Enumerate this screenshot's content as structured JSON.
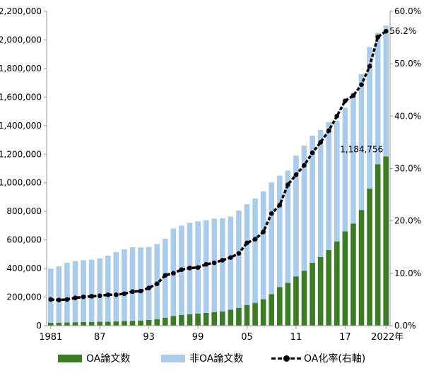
{
  "chart_data": {
    "type": "bar",
    "stacked": true,
    "categories": [
      "1981",
      "1982",
      "1983",
      "1984",
      "1985",
      "1986",
      "1987",
      "1988",
      "1989",
      "1990",
      "1991",
      "1992",
      "1993",
      "1994",
      "1995",
      "1996",
      "1997",
      "1998",
      "1999",
      "2000",
      "2001",
      "2002",
      "2003",
      "2004",
      "2005",
      "2006",
      "2007",
      "2008",
      "2009",
      "2010",
      "2011",
      "2012",
      "2013",
      "2014",
      "2015",
      "2016",
      "2017",
      "2018",
      "2019",
      "2020",
      "2021",
      "2022"
    ],
    "x_tick_labels": [
      "1981",
      "",
      "",
      "",
      "",
      "",
      "87",
      "",
      "",
      "",
      "",
      "",
      "93",
      "",
      "",
      "",
      "",
      "",
      "99",
      "",
      "",
      "",
      "",
      "",
      "05",
      "",
      "",
      "",
      "",
      "",
      "11",
      "",
      "",
      "",
      "",
      "",
      "17",
      "",
      "",
      "",
      "",
      "2022年"
    ],
    "x_unit_label": "(PY)",
    "series": [
      {
        "name": "OA論文数",
        "color": "#3a7d22",
        "values": [
          20000,
          21000,
          22000,
          24000,
          25000,
          26000,
          27000,
          28000,
          30000,
          32000,
          34000,
          36000,
          40000,
          46000,
          55000,
          68000,
          75000,
          80000,
          85000,
          90000,
          95000,
          100000,
          112000,
          125000,
          145000,
          160000,
          185000,
          220000,
          270000,
          300000,
          345000,
          385000,
          440000,
          480000,
          530000,
          590000,
          660000,
          715000,
          810000,
          960000,
          1130000,
          1184756
        ]
      },
      {
        "name": "非OA論文数",
        "color": "#a9cbec",
        "values": [
          380000,
          395000,
          418000,
          428000,
          433000,
          436000,
          444000,
          462000,
          485000,
          503000,
          514000,
          512000,
          511000,
          525000,
          553000,
          612000,
          625000,
          640000,
          645000,
          648000,
          655000,
          652000,
          652000,
          680000,
          705000,
          730000,
          755000,
          782000,
          780000,
          785000,
          845000,
          875000,
          890000,
          890000,
          895000,
          845000,
          865000,
          915000,
          950000,
          990000,
          920000,
          915000
        ]
      }
    ],
    "line_series": {
      "name": "OA化率(右軸)",
      "axis": "right",
      "color": "#000000",
      "values": [
        5.0,
        4.9,
        5.0,
        5.3,
        5.5,
        5.6,
        5.7,
        5.9,
        5.9,
        6.1,
        6.5,
        6.6,
        7.2,
        8.0,
        9.6,
        10.0,
        10.7,
        11.0,
        11.1,
        11.7,
        12.0,
        12.5,
        13.0,
        13.8,
        15.8,
        16.5,
        17.9,
        21.4,
        23.0,
        26.9,
        28.8,
        30.6,
        33.0,
        35.0,
        37.2,
        40.0,
        42.9,
        43.9,
        46.0,
        49.5,
        55.1,
        56.2
      ]
    },
    "annotations": [
      {
        "series": "OA論文数",
        "category": "2022",
        "text": "1,184,756"
      },
      {
        "series": "OA化率(右軸)",
        "category": "2022",
        "text": "56.2%"
      }
    ],
    "y_left": {
      "min": 0,
      "max": 2200000,
      "step": 200000,
      "tick_labels": [
        "0",
        "200,000",
        "400,000",
        "600,000",
        "800,000",
        "1,000,000",
        "1,200,000",
        "1,400,000",
        "1,600,000",
        "1,800,000",
        "2,000,000",
        "2,200,000"
      ]
    },
    "y_right": {
      "min": 0,
      "max": 60,
      "step": 10,
      "tick_labels": [
        "0.0%",
        "10.0%",
        "20.0%",
        "30.0%",
        "40.0%",
        "50.0%",
        "60.0%"
      ]
    },
    "grid": false,
    "legend_position": "bottom"
  }
}
